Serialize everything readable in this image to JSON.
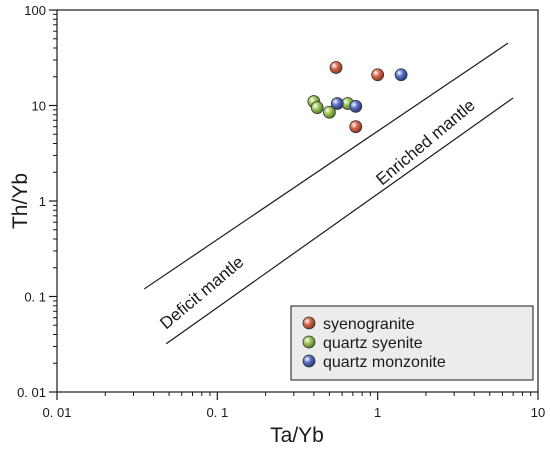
{
  "chart_data": {
    "type": "scatter",
    "xlabel": "Ta/Yb",
    "ylabel": "Th/Yb",
    "x_scale": "log",
    "y_scale": "log",
    "xlim": [
      0.01,
      10
    ],
    "ylim": [
      0.01,
      100
    ],
    "x_ticks": [
      0.01,
      0.1,
      1,
      10
    ],
    "x_tick_labels": [
      "0. 01",
      "0. 1",
      "1",
      "10"
    ],
    "y_ticks": [
      0.01,
      0.1,
      1,
      10,
      100
    ],
    "y_tick_labels": [
      "0. 01",
      "0. 1",
      "1",
      "10",
      "100"
    ],
    "grid": false,
    "legend_position": "bottom-right",
    "series": [
      {
        "name": "syenogranite",
        "color": "#d9694a",
        "points": [
          {
            "x": 0.55,
            "y": 25
          },
          {
            "x": 1.0,
            "y": 21
          },
          {
            "x": 0.73,
            "y": 6
          }
        ]
      },
      {
        "name": "quartz syenite",
        "color": "#9cc65a",
        "points": [
          {
            "x": 0.4,
            "y": 11
          },
          {
            "x": 0.42,
            "y": 9.5
          },
          {
            "x": 0.5,
            "y": 8.5
          },
          {
            "x": 0.65,
            "y": 10.5
          }
        ]
      },
      {
        "name": "quartz monzonite",
        "color": "#5a73c4",
        "points": [
          {
            "x": 0.56,
            "y": 10.5
          },
          {
            "x": 0.73,
            "y": 9.8
          },
          {
            "x": 1.4,
            "y": 21
          }
        ]
      }
    ],
    "boundary_lines": [
      {
        "from": {
          "x": 0.035,
          "y": 0.12
        },
        "to": {
          "x": 6.5,
          "y": 45
        }
      },
      {
        "from": {
          "x": 0.048,
          "y": 0.032
        },
        "to": {
          "x": 7.0,
          "y": 12
        }
      }
    ],
    "region_labels": [
      "Deficit mantle",
      "Enriched mantle"
    ]
  }
}
